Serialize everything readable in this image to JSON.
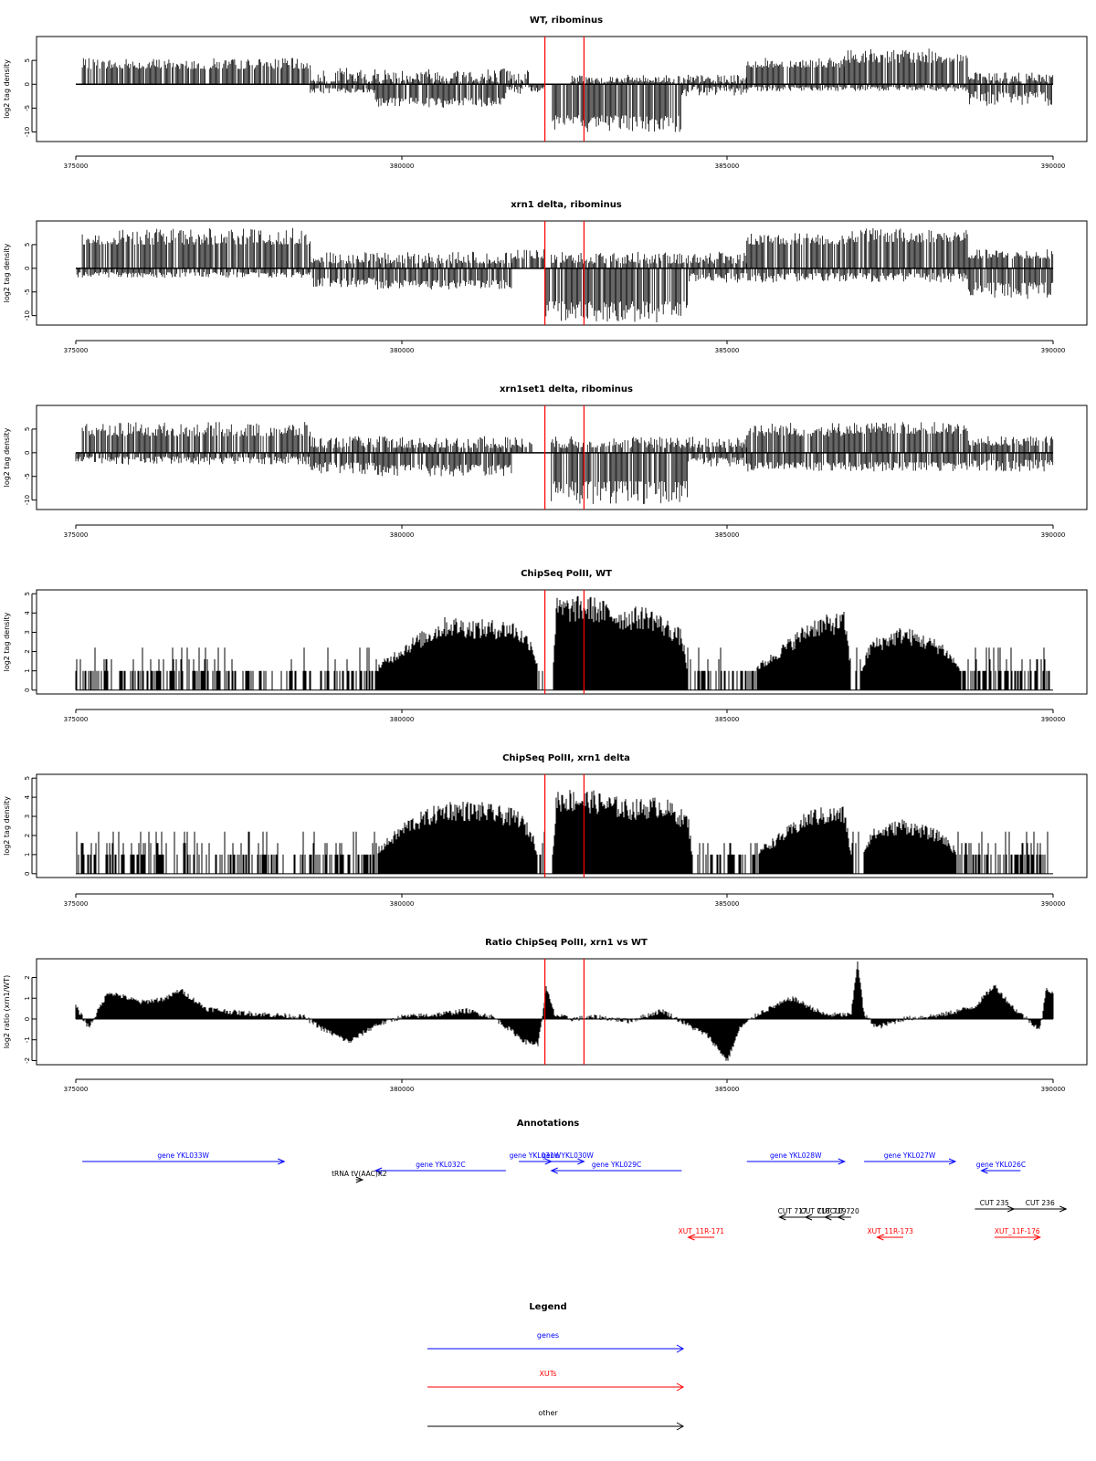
{
  "panels": [
    {
      "title": "WT, ribominus",
      "ylabel": "log2 tag density"
    },
    {
      "title": "xrn1 delta, ribominus",
      "ylabel": "log2 tag density"
    },
    {
      "title": "xrn1set1 delta, ribominus",
      "ylabel": "log2 tag density"
    },
    {
      "title": "ChipSeq PolII, WT",
      "ylabel": "log2 tag density"
    },
    {
      "title": "ChipSeq PolII, xrn1 delta",
      "ylabel": "log2 tag density"
    },
    {
      "title": "Ratio ChipSeq PolII, xrn1 vs WT",
      "ylabel": "log2 ratio (xrn1/WT)"
    }
  ],
  "x_ticks": [
    "375000",
    "380000",
    "385000",
    "390000"
  ],
  "annotations_title": "Annotations",
  "legend": {
    "title": "Legend",
    "items": [
      {
        "label": "genes",
        "color": "#0000ff"
      },
      {
        "label": "XUTs",
        "color": "#ff0000"
      },
      {
        "label": "other",
        "color": "#000000"
      }
    ]
  },
  "colors": {
    "genes": "#0000ff",
    "xuts": "#ff0000",
    "other": "#000000",
    "marker": "#ff0000",
    "signal": "#000000"
  },
  "chart_data": [
    {
      "type": "bar",
      "title": "WT, ribominus",
      "ylabel": "log2 tag density",
      "xlim": [
        375000,
        390000
      ],
      "ylim": [
        -12,
        10
      ],
      "yticks": [
        -10,
        -5,
        0,
        5
      ],
      "markers": [
        382200,
        382800
      ],
      "plus_strand": [
        [
          375100,
          378600,
          3.2,
          5.5
        ],
        [
          378600,
          382000,
          0.5,
          3.5
        ],
        [
          382600,
          385300,
          0.4,
          2
        ],
        [
          385300,
          386800,
          3.5,
          5.5
        ],
        [
          386800,
          388700,
          4.5,
          7.5
        ],
        [
          388700,
          390000,
          0.5,
          2.5
        ]
      ],
      "minus_strand": [
        [
          378600,
          379600,
          -0.8,
          -2
        ],
        [
          379600,
          381600,
          -2.8,
          -5
        ],
        [
          381600,
          382200,
          -0.5,
          -2
        ],
        [
          382300,
          384300,
          -6.5,
          -10
        ],
        [
          384300,
          385300,
          -0.5,
          -2.5
        ],
        [
          385300,
          388700,
          -0.5,
          -1.5
        ],
        [
          388700,
          390000,
          -1.5,
          -4.5
        ]
      ]
    },
    {
      "type": "bar",
      "title": "xrn1 delta, ribominus",
      "ylabel": "log2 tag density",
      "xlim": [
        375000,
        390000
      ],
      "ylim": [
        -12,
        10
      ],
      "yticks": [
        -10,
        -5,
        0,
        5
      ],
      "markers": [
        382200,
        382800
      ],
      "plus_strand": [
        [
          375100,
          378600,
          5,
          8.5
        ],
        [
          378600,
          381700,
          1,
          3.5
        ],
        [
          381700,
          382200,
          2,
          4
        ],
        [
          382300,
          385300,
          1,
          3.5
        ],
        [
          385300,
          386900,
          5,
          7.5
        ],
        [
          386900,
          388700,
          5.5,
          8.5
        ],
        [
          388700,
          390000,
          2,
          4
        ]
      ],
      "minus_strand": [
        [
          375000,
          378600,
          -0.8,
          -2
        ],
        [
          378600,
          379600,
          -2,
          -4
        ],
        [
          379600,
          381700,
          -2.5,
          -4.5
        ],
        [
          382200,
          384400,
          -7,
          -11.5
        ],
        [
          384400,
          385300,
          -1,
          -3
        ],
        [
          385300,
          388700,
          -1,
          -3
        ],
        [
          388700,
          390000,
          -3,
          -6.5
        ]
      ]
    },
    {
      "type": "bar",
      "title": "xrn1set1 delta, ribominus",
      "ylabel": "log2 tag density",
      "xlim": [
        375000,
        390000
      ],
      "ylim": [
        -12,
        10
      ],
      "yticks": [
        -10,
        -5,
        0,
        5
      ],
      "markers": [
        382200,
        382800
      ],
      "plus_strand": [
        [
          375100,
          378600,
          3.5,
          6.5
        ],
        [
          378600,
          382000,
          1,
          3.5
        ],
        [
          382300,
          385300,
          1,
          3.5
        ],
        [
          385300,
          386800,
          3.5,
          6.5
        ],
        [
          386800,
          388700,
          4,
          6.5
        ],
        [
          388700,
          390000,
          1.5,
          3.5
        ]
      ],
      "minus_strand": [
        [
          375000,
          378600,
          -0.8,
          -2.5
        ],
        [
          378600,
          379600,
          -2,
          -4.5
        ],
        [
          379600,
          381700,
          -2.5,
          -5
        ],
        [
          382300,
          384400,
          -6,
          -11
        ],
        [
          384400,
          385300,
          -1,
          -3
        ],
        [
          385300,
          388700,
          -2,
          -4
        ],
        [
          388700,
          390000,
          -1.5,
          -4
        ]
      ]
    },
    {
      "type": "bar",
      "title": "ChipSeq PolII, WT",
      "ylabel": "log2 tag density",
      "xlim": [
        375000,
        390000
      ],
      "ylim": [
        -0.2,
        5.2
      ],
      "yticks": [
        0,
        1,
        2,
        3,
        4,
        5
      ],
      "markers": [
        382200,
        382800
      ],
      "profile": [
        [
          375000,
          0.4
        ],
        [
          376000,
          0.6
        ],
        [
          377000,
          0.8
        ],
        [
          378000,
          0.6
        ],
        [
          379000,
          0.5
        ],
        [
          379600,
          1.2
        ],
        [
          380100,
          2.5
        ],
        [
          380700,
          3.7
        ],
        [
          381200,
          3.5
        ],
        [
          381700,
          3.5
        ],
        [
          382000,
          2.6
        ],
        [
          382180,
          0
        ],
        [
          382300,
          0
        ],
        [
          382380,
          4.6
        ],
        [
          382900,
          4.7
        ],
        [
          383400,
          4.1
        ],
        [
          383800,
          4.2
        ],
        [
          384300,
          3.0
        ],
        [
          384450,
          0
        ],
        [
          385200,
          0.8
        ],
        [
          385600,
          1.6
        ],
        [
          386300,
          3.6
        ],
        [
          386800,
          3.9
        ],
        [
          386950,
          0
        ],
        [
          387200,
          2.5
        ],
        [
          387700,
          3.2
        ],
        [
          388300,
          2.4
        ],
        [
          388800,
          0.3
        ],
        [
          389500,
          0.6
        ],
        [
          390000,
          0
        ]
      ]
    },
    {
      "type": "bar",
      "title": "ChipSeq PolII, xrn1 delta",
      "ylabel": "log2 tag density",
      "xlim": [
        375000,
        390000
      ],
      "ylim": [
        -0.2,
        5.2
      ],
      "yticks": [
        0,
        1,
        2,
        3,
        4,
        5
      ],
      "markers": [
        382200,
        382800
      ],
      "profile": [
        [
          375000,
          0.3
        ],
        [
          375600,
          0.9
        ],
        [
          376400,
          1.2
        ],
        [
          377200,
          0.7
        ],
        [
          378000,
          0.7
        ],
        [
          378200,
          0
        ],
        [
          379300,
          0.4
        ],
        [
          379600,
          1.2
        ],
        [
          380100,
          2.8
        ],
        [
          380700,
          3.7
        ],
        [
          381200,
          3.6
        ],
        [
          381800,
          3.2
        ],
        [
          382000,
          2.2
        ],
        [
          382200,
          0
        ],
        [
          382300,
          0
        ],
        [
          382380,
          4.3
        ],
        [
          382900,
          4.2
        ],
        [
          383500,
          3.7
        ],
        [
          384000,
          3.9
        ],
        [
          384400,
          3.0
        ],
        [
          384500,
          0
        ],
        [
          385300,
          0.9
        ],
        [
          385700,
          1.8
        ],
        [
          386300,
          3.3
        ],
        [
          386800,
          3.4
        ],
        [
          386950,
          0
        ],
        [
          387200,
          2.2
        ],
        [
          387700,
          2.8
        ],
        [
          388300,
          2.1
        ],
        [
          388700,
          0.5
        ],
        [
          389500,
          0.5
        ],
        [
          390000,
          0
        ]
      ]
    },
    {
      "type": "area",
      "title": "Ratio ChipSeq PolII, xrn1 vs WT",
      "ylabel": "log2 ratio (xrn1/WT)",
      "xlim": [
        375000,
        390000
      ],
      "ylim": [
        -2.2,
        2.9
      ],
      "yticks": [
        -2,
        -1,
        0,
        1,
        2
      ],
      "markers": [
        382200,
        382800
      ],
      "profile": [
        [
          375000,
          0.6
        ],
        [
          375200,
          -0.4
        ],
        [
          375500,
          1.3
        ],
        [
          376000,
          0.8
        ],
        [
          376400,
          1.0
        ],
        [
          376600,
          1.4
        ],
        [
          377000,
          0.5
        ],
        [
          377500,
          0.3
        ],
        [
          378000,
          0.2
        ],
        [
          378500,
          0.1
        ],
        [
          378800,
          -0.5
        ],
        [
          379200,
          -1.1
        ],
        [
          379600,
          -0.3
        ],
        [
          380000,
          0.1
        ],
        [
          380500,
          0.2
        ],
        [
          381000,
          0.4
        ],
        [
          381400,
          0.1
        ],
        [
          381700,
          -0.6
        ],
        [
          381900,
          -1.1
        ],
        [
          382100,
          -1.2
        ],
        [
          382220,
          1.5
        ],
        [
          382350,
          0.2
        ],
        [
          382600,
          0.0
        ],
        [
          383000,
          0.1
        ],
        [
          383500,
          -0.1
        ],
        [
          384000,
          0.4
        ],
        [
          384400,
          -0.3
        ],
        [
          384700,
          -0.8
        ],
        [
          385000,
          -2.0
        ],
        [
          385200,
          -0.4
        ],
        [
          385500,
          0.3
        ],
        [
          386000,
          1.0
        ],
        [
          386500,
          0.2
        ],
        [
          386900,
          0.2
        ],
        [
          387000,
          2.8
        ],
        [
          387100,
          0.2
        ],
        [
          387300,
          -0.4
        ],
        [
          387700,
          0.0
        ],
        [
          388300,
          0.2
        ],
        [
          388800,
          0.6
        ],
        [
          389100,
          1.6
        ],
        [
          389400,
          0.5
        ],
        [
          389800,
          -0.5
        ],
        [
          389900,
          1.5
        ],
        [
          390000,
          1.2
        ]
      ]
    }
  ],
  "annotations": [
    {
      "label": "gene YKL033W",
      "color": "#0000ff",
      "start": 375100,
      "end": 378200,
      "row": 0
    },
    {
      "label": "gene YKL032C",
      "color": "#0000ff",
      "start": 381600,
      "end": 379600,
      "row": 1
    },
    {
      "label": "gene YKL031W",
      "color": "#0000ff",
      "start": 381800,
      "end": 382300,
      "row": 0
    },
    {
      "label": "gene YKL030W",
      "color": "#0000ff",
      "start": 382300,
      "end": 382800,
      "row": 0
    },
    {
      "label": "gene YKL029C",
      "color": "#0000ff",
      "start": 384300,
      "end": 382300,
      "row": 1
    },
    {
      "label": "gene YKL028W",
      "color": "#0000ff",
      "start": 385300,
      "end": 386800,
      "row": 0
    },
    {
      "label": "gene YKL027W",
      "color": "#0000ff",
      "start": 387100,
      "end": 388500,
      "row": 0
    },
    {
      "label": "gene YKL026C",
      "color": "#0000ff",
      "start": 389500,
      "end": 388900,
      "row": 1
    },
    {
      "label": "tRNA tV(AAC)K2",
      "color": "#000000",
      "start": 379300,
      "end": 379400,
      "row": 2
    },
    {
      "label": "CUT 717",
      "color": "#000000",
      "start": 386200,
      "end": 385800,
      "row": 4
    },
    {
      "label": "CUT 718",
      "color": "#000000",
      "start": 386500,
      "end": 386200,
      "row": 4
    },
    {
      "label": "CUT 719",
      "color": "#000000",
      "start": 386700,
      "end": 386500,
      "row": 4
    },
    {
      "label": "CUT 720",
      "color": "#000000",
      "start": 386900,
      "end": 386700,
      "row": 4
    },
    {
      "label": "CUT 235",
      "color": "#000000",
      "start": 388800,
      "end": 389400,
      "row": 3
    },
    {
      "label": "CUT 236",
      "color": "#000000",
      "start": 389400,
      "end": 390200,
      "row": 3
    },
    {
      "label": "XUT_11R-171",
      "color": "#ff0000",
      "start": 384800,
      "end": 384400,
      "row": 5
    },
    {
      "label": "XUT_11R-173",
      "color": "#ff0000",
      "start": 387700,
      "end": 387300,
      "row": 5
    },
    {
      "label": "XUT_11F-176",
      "color": "#ff0000",
      "start": 389100,
      "end": 389800,
      "row": 5
    }
  ]
}
